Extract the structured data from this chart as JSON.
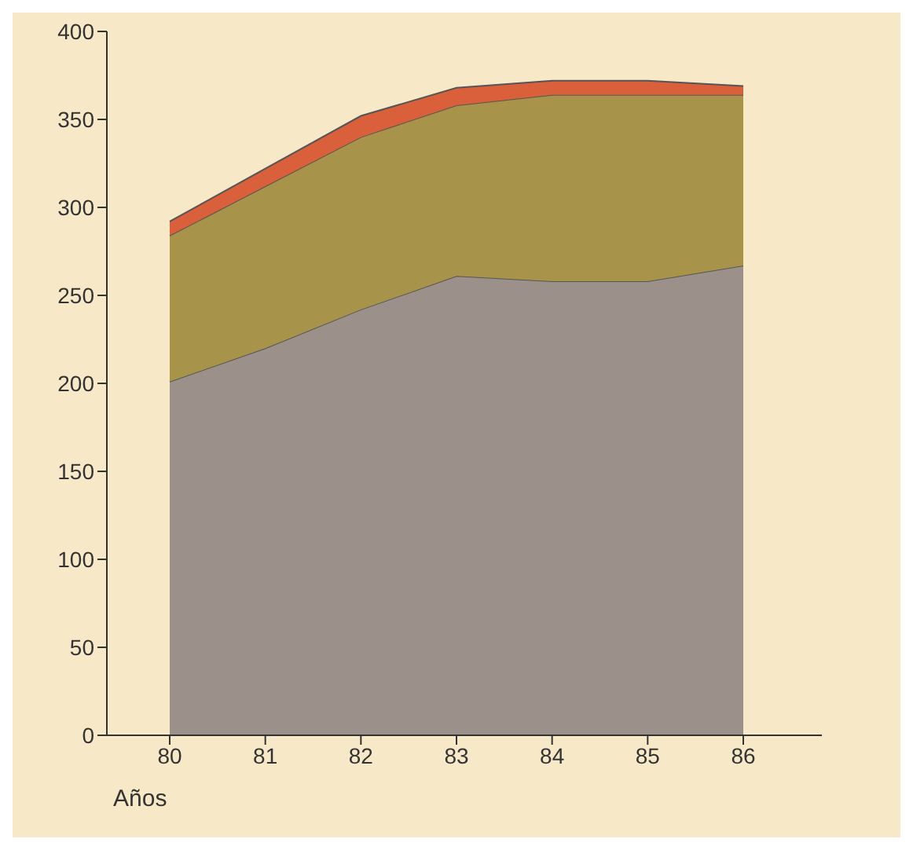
{
  "chart_data": {
    "type": "area",
    "stacked": true,
    "xlabel": "Años",
    "categories": [
      "80",
      "81",
      "82",
      "83",
      "84",
      "85",
      "86"
    ],
    "series": [
      {
        "color": "#9c918a",
        "values": [
          201,
          220,
          242,
          261,
          258,
          258,
          267
        ]
      },
      {
        "color": "#a8934a",
        "values": [
          83,
          92,
          98,
          97,
          106,
          106,
          97
        ]
      },
      {
        "color": "#d9603a",
        "values": [
          8,
          10,
          12,
          10,
          8,
          8,
          5
        ]
      }
    ],
    "ylim": [
      0,
      400
    ],
    "yticks": [
      0,
      50,
      100,
      150,
      200,
      250,
      300,
      350,
      400
    ],
    "grid": false,
    "legend": false
  }
}
